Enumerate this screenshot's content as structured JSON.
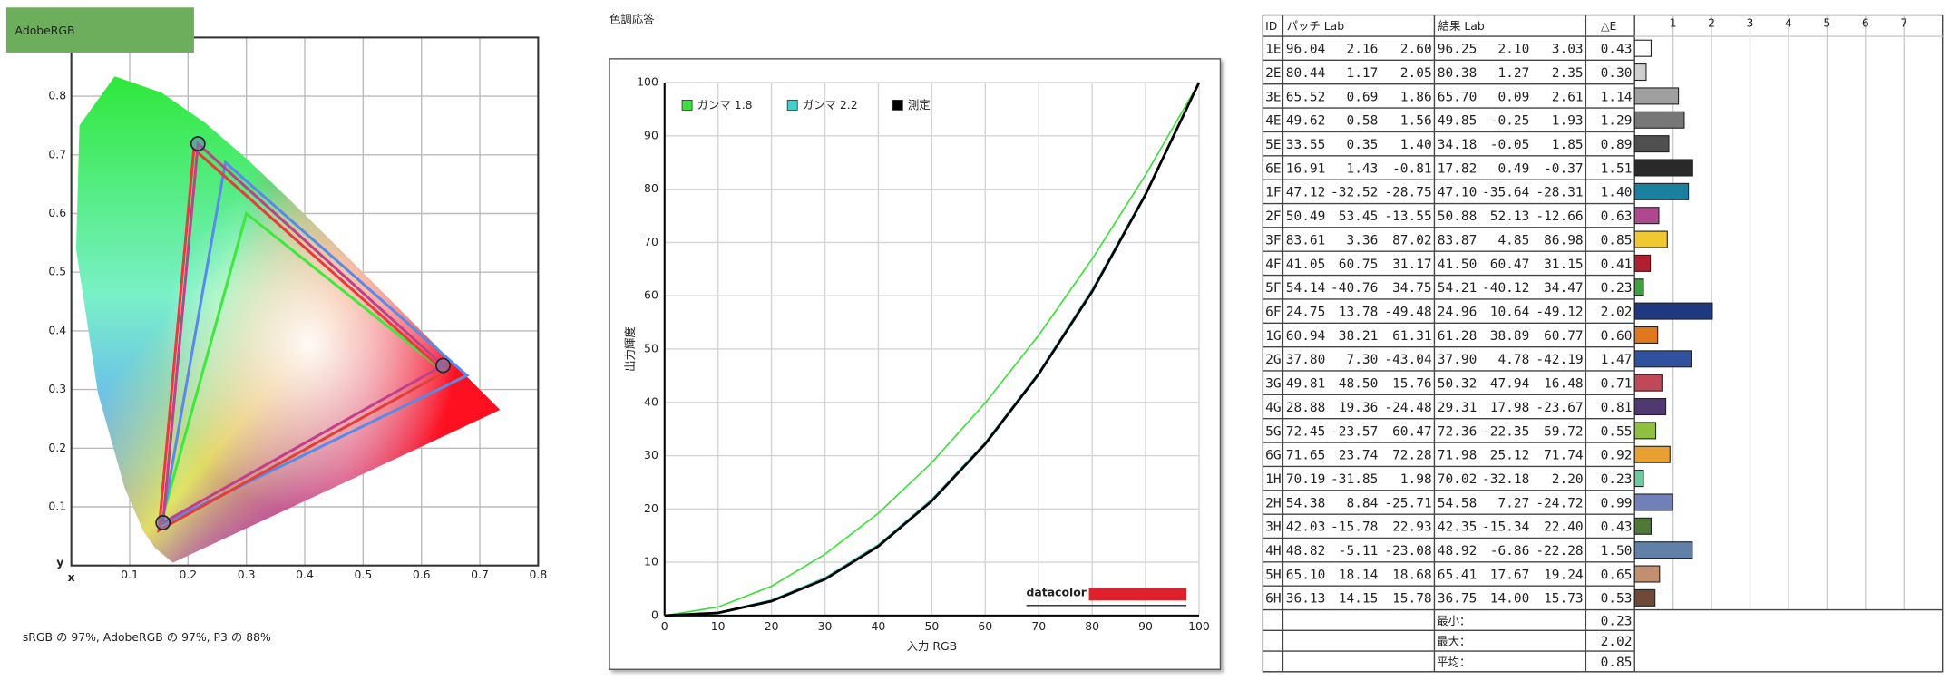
{
  "chart_data": [
    {
      "type": "chromaticity",
      "title": "AdobeRGB",
      "caption": "sRGB の 97%, AdobeRGB の 97%, P3 の 88%",
      "xlabel": "x",
      "ylabel": "y",
      "xlim": [
        0,
        0.8
      ],
      "ylim": [
        0,
        0.9
      ],
      "xticks": [
        0.1,
        0.2,
        0.3,
        0.4,
        0.5,
        0.6,
        0.7,
        0.8
      ],
      "yticks": [
        0.1,
        0.2,
        0.3,
        0.4,
        0.5,
        0.6,
        0.7,
        0.8
      ],
      "grid": true,
      "series": [
        {
          "color": "#3ee83e",
          "x": [
            0.64,
            0.3,
            0.15
          ],
          "values": [
            0.33,
            0.6,
            0.06
          ]
        },
        {
          "color": "#5a8ae8",
          "x": [
            0.678,
            0.264,
            0.155
          ],
          "values": [
            0.324,
            0.687,
            0.07
          ]
        },
        {
          "color": "#e83c3c",
          "x": [
            0.64,
            0.21,
            0.15
          ],
          "values": [
            0.33,
            0.71,
            0.06
          ]
        },
        {
          "color": "#c0408a",
          "x": [
            0.637,
            0.217,
            0.157
          ],
          "values": [
            0.341,
            0.719,
            0.073
          ],
          "markers": true
        }
      ]
    },
    {
      "type": "line",
      "title": "色調応答",
      "xlabel": "入力 RGB",
      "ylabel": "出力輝度",
      "logo": "datacolor",
      "x": [
        0,
        10,
        20,
        30,
        40,
        50,
        60,
        70,
        80,
        90,
        100
      ],
      "xlim": [
        0,
        100
      ],
      "ylim": [
        0,
        100
      ],
      "xticks": [
        0,
        10,
        20,
        30,
        40,
        50,
        60,
        70,
        80,
        90,
        100
      ],
      "yticks": [
        0,
        10,
        20,
        30,
        40,
        50,
        60,
        70,
        80,
        90,
        100
      ],
      "grid": true,
      "legend": "top-left",
      "series": [
        {
          "name": "ガンマ 1.8",
          "color": "#3de03d",
          "values": [
            0,
            1.6,
            5.5,
            11.5,
            19.2,
            28.7,
            39.9,
            52.6,
            66.9,
            82.7,
            100
          ]
        },
        {
          "name": "ガンマ 2.2",
          "color": "#40d0d0",
          "values": [
            0,
            0.6,
            2.9,
            7.1,
            13.3,
            21.8,
            32.5,
            45.6,
            61.2,
            79.3,
            100
          ]
        },
        {
          "name": "測定",
          "color": "#000000",
          "values": [
            0,
            0.5,
            2.7,
            6.8,
            13.0,
            21.5,
            32.2,
            45.3,
            60.8,
            79.0,
            100
          ]
        }
      ]
    }
  ],
  "table": {
    "headers": [
      "ID",
      "パッチ Lab",
      "結果 Lab",
      "△E"
    ],
    "bar_xlim": [
      0,
      8
    ],
    "bar_ticks": [
      1,
      2,
      3,
      4,
      5,
      6,
      7
    ],
    "rows": [
      [
        "1E",
        "96.04",
        "2.16",
        "2.60",
        "96.25",
        "2.10",
        "3.03",
        "0.43"
      ],
      [
        "2E",
        "80.44",
        "1.17",
        "2.05",
        "80.38",
        "1.27",
        "2.35",
        "0.30"
      ],
      [
        "3E",
        "65.52",
        "0.69",
        "1.86",
        "65.70",
        "0.09",
        "2.61",
        "1.14"
      ],
      [
        "4E",
        "49.62",
        "0.58",
        "1.56",
        "49.85",
        "-0.25",
        "1.93",
        "1.29"
      ],
      [
        "5E",
        "33.55",
        "0.35",
        "1.40",
        "34.18",
        "-0.05",
        "1.85",
        "0.89"
      ],
      [
        "6E",
        "16.91",
        "1.43",
        "-0.81",
        "17.82",
        "0.49",
        "-0.37",
        "1.51"
      ],
      [
        "1F",
        "47.12",
        "-32.52",
        "-28.75",
        "47.10",
        "-35.64",
        "-28.31",
        "1.40"
      ],
      [
        "2F",
        "50.49",
        "53.45",
        "-13.55",
        "50.88",
        "52.13",
        "-12.66",
        "0.63"
      ],
      [
        "3F",
        "83.61",
        "3.36",
        "87.02",
        "83.87",
        "4.85",
        "86.98",
        "0.85"
      ],
      [
        "4F",
        "41.05",
        "60.75",
        "31.17",
        "41.50",
        "60.47",
        "31.15",
        "0.41"
      ],
      [
        "5F",
        "54.14",
        "-40.76",
        "34.75",
        "54.21",
        "-40.12",
        "34.47",
        "0.23"
      ],
      [
        "6F",
        "24.75",
        "13.78",
        "-49.48",
        "24.96",
        "10.64",
        "-49.12",
        "2.02"
      ],
      [
        "1G",
        "60.94",
        "38.21",
        "61.31",
        "61.28",
        "38.89",
        "60.77",
        "0.60"
      ],
      [
        "2G",
        "37.80",
        "7.30",
        "-43.04",
        "37.90",
        "4.78",
        "-42.19",
        "1.47"
      ],
      [
        "3G",
        "49.81",
        "48.50",
        "15.76",
        "50.32",
        "47.94",
        "16.48",
        "0.71"
      ],
      [
        "4G",
        "28.88",
        "19.36",
        "-24.48",
        "29.31",
        "17.98",
        "-23.67",
        "0.81"
      ],
      [
        "5G",
        "72.45",
        "-23.57",
        "60.47",
        "72.36",
        "-22.35",
        "59.72",
        "0.55"
      ],
      [
        "6G",
        "71.65",
        "23.74",
        "72.28",
        "71.98",
        "25.12",
        "71.74",
        "0.92"
      ],
      [
        "1H",
        "70.19",
        "-31.85",
        "1.98",
        "70.02",
        "-32.18",
        "2.20",
        "0.23"
      ],
      [
        "2H",
        "54.38",
        "8.84",
        "-25.71",
        "54.58",
        "7.27",
        "-24.72",
        "0.99"
      ],
      [
        "3H",
        "42.03",
        "-15.78",
        "22.93",
        "42.35",
        "-15.34",
        "22.40",
        "0.43"
      ],
      [
        "4H",
        "48.82",
        "-5.11",
        "-23.08",
        "48.92",
        "-6.86",
        "-22.28",
        "1.50"
      ],
      [
        "5H",
        "65.10",
        "18.14",
        "18.68",
        "65.41",
        "17.67",
        "19.24",
        "0.65"
      ],
      [
        "6H",
        "36.13",
        "14.15",
        "15.78",
        "36.75",
        "14.00",
        "15.73",
        "0.53"
      ]
    ],
    "colors": [
      "#ffffff",
      "#d0d0d0",
      "#a0a0a0",
      "#777777",
      "#505050",
      "#2a2a2a",
      "#1a80a0",
      "#b04890",
      "#f0c830",
      "#b02030",
      "#40a040",
      "#203880",
      "#e07820",
      "#3050a0",
      "#c04858",
      "#503870",
      "#90c040",
      "#e8a030",
      "#70c8a0",
      "#7080b8",
      "#507838",
      "#6080a8",
      "#c09070",
      "#704838"
    ],
    "summary": [
      [
        "最小：",
        "0.23"
      ],
      [
        "最大：",
        "2.02"
      ],
      [
        "平均：",
        "0.85"
      ]
    ]
  }
}
